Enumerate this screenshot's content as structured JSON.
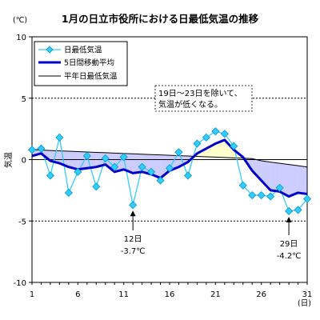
{
  "chart_data": {
    "type": "line",
    "title": "1月の日立市役所における日最低気温の推移",
    "ylabel": "気温",
    "y_unit": "(℃)",
    "x_unit": "(日)",
    "ylim": [
      -10,
      10
    ],
    "xlim": [
      1,
      31
    ],
    "x_ticks": [
      1,
      6,
      11,
      16,
      21,
      26,
      31
    ],
    "y_ticks": [
      10,
      5,
      0,
      -5,
      -10
    ],
    "dashed_gridlines_at": [
      5,
      -5
    ],
    "x": [
      1,
      2,
      3,
      4,
      5,
      6,
      7,
      8,
      9,
      10,
      11,
      12,
      13,
      14,
      15,
      16,
      17,
      18,
      19,
      20,
      21,
      22,
      23,
      24,
      25,
      26,
      27,
      28,
      29,
      30,
      31
    ],
    "series": [
      {
        "name": "日最低気温",
        "values": [
          0.8,
          0.9,
          -1.3,
          1.8,
          -2.7,
          -1.0,
          0.3,
          -2.2,
          0.1,
          -0.6,
          0.2,
          -3.7,
          -0.6,
          -1.0,
          -1.7,
          -0.7,
          0.6,
          -1.3,
          1.3,
          1.8,
          2.3,
          2.1,
          1.1,
          -2.1,
          -2.9,
          -2.9,
          -3.0,
          -2.3,
          -4.2,
          -4.1,
          -3.2
        ],
        "color": "#33ccff",
        "marker": "diamond"
      },
      {
        "name": "5日間移動平均",
        "values": [
          0.3,
          0.5,
          -0.1,
          -0.3,
          -0.6,
          -0.8,
          -0.7,
          -0.6,
          -0.4,
          -1.0,
          -0.8,
          -1.1,
          -1.0,
          -1.2,
          -1.5,
          -0.9,
          -0.6,
          -0.2,
          0.5,
          0.9,
          1.3,
          1.6,
          0.8,
          0.2,
          -0.9,
          -1.7,
          -2.5,
          -2.6,
          -3.0,
          -2.7,
          -2.8
        ],
        "color": "#0000cc"
      },
      {
        "name": "平年日最低気温",
        "values": [
          0.8,
          0.77,
          0.74,
          0.71,
          0.68,
          0.65,
          0.62,
          0.59,
          0.56,
          0.53,
          0.5,
          0.47,
          0.44,
          0.41,
          0.38,
          0.35,
          0.32,
          0.29,
          0.26,
          0.23,
          0.2,
          0.17,
          0.14,
          0.11,
          0.08,
          -0.1,
          -0.2,
          -0.3,
          -0.4,
          -0.5,
          -0.6
        ],
        "color": "#000000"
      }
    ],
    "fill_below_normal": "#ccccff",
    "fill_above_normal": "#ffffcc",
    "legend_placement": "top-left",
    "annotations": [
      {
        "lines": [
          "19日～23日を除いて、",
          "気温が低くなる。"
        ],
        "boxed": true
      },
      {
        "lines": [
          "12日",
          "-3.7℃"
        ],
        "x": 12,
        "arrow_to_y": -3.7
      },
      {
        "lines": [
          "29日",
          "-4.2℃"
        ],
        "x": 29,
        "arrow_to_y": -4.2
      }
    ]
  }
}
